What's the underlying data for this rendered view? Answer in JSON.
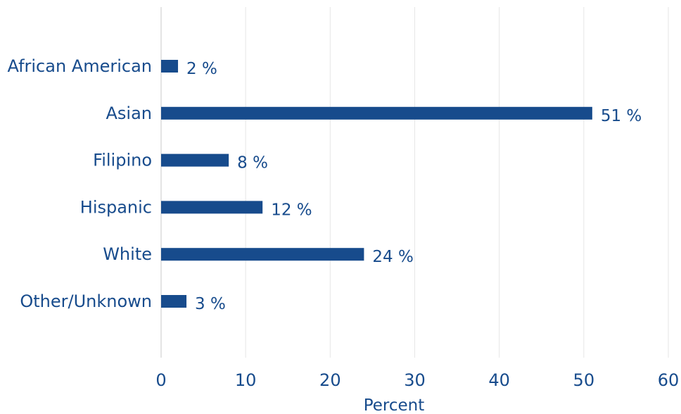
{
  "chart_data": {
    "type": "bar",
    "orientation": "horizontal",
    "categories": [
      "African American",
      "Asian",
      "Filipino",
      "Hispanic",
      "White",
      "Other/Unknown"
    ],
    "values": [
      2,
      51,
      8,
      12,
      24,
      3
    ],
    "value_labels": [
      "2 %",
      "51 %",
      "8 %",
      "12 %",
      "24 %",
      "3 %"
    ],
    "x_ticks": [
      "0",
      "10",
      "20",
      "30",
      "40",
      "50",
      "60"
    ],
    "xlabel": "Percent",
    "ylabel": "",
    "xlim": [
      0,
      60
    ],
    "grid": true,
    "legend": "none",
    "colors": {
      "bar": "#174b8c",
      "text": "#174b8c",
      "grid": "#e6e6e6"
    }
  }
}
